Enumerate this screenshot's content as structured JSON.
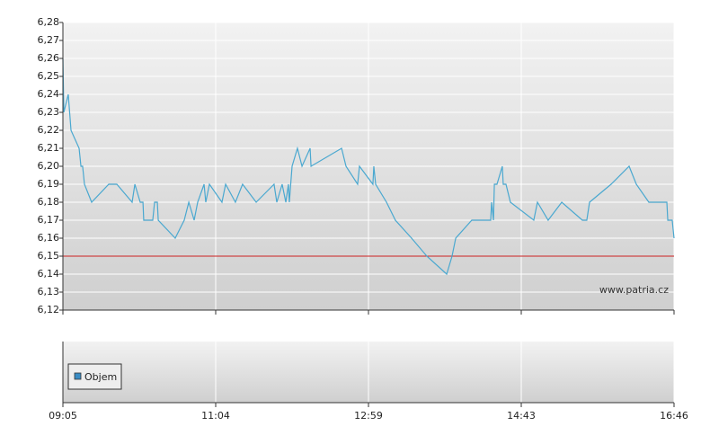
{
  "chart_data": [
    {
      "type": "line",
      "xlim": [
        0,
        4
      ],
      "xticks": [
        {
          "value": 0,
          "label": "09:05"
        },
        {
          "value": 1,
          "label": "11:04"
        },
        {
          "value": 2,
          "label": "12:59"
        },
        {
          "value": 3,
          "label": "14:43"
        },
        {
          "value": 4,
          "label": "16:46"
        }
      ],
      "ylim": [
        6.12,
        6.28
      ],
      "yticks": [
        {
          "value": 6.12,
          "label": "6,12"
        },
        {
          "value": 6.13,
          "label": "6,13"
        },
        {
          "value": 6.14,
          "label": "6,14"
        },
        {
          "value": 6.15,
          "label": "6,15"
        },
        {
          "value": 6.16,
          "label": "6,16"
        },
        {
          "value": 6.17,
          "label": "6,17"
        },
        {
          "value": 6.18,
          "label": "6,18"
        },
        {
          "value": 6.19,
          "label": "6,19"
        },
        {
          "value": 6.2,
          "label": "6,20"
        },
        {
          "value": 6.21,
          "label": "6,21"
        },
        {
          "value": 6.22,
          "label": "6,22"
        },
        {
          "value": 6.23,
          "label": "6,23"
        },
        {
          "value": 6.24,
          "label": "6,24"
        },
        {
          "value": 6.25,
          "label": "6,25"
        },
        {
          "value": 6.26,
          "label": "6,26"
        },
        {
          "value": 6.27,
          "label": "6,27"
        },
        {
          "value": 6.28,
          "label": "6,28"
        }
      ],
      "grid": true,
      "reference_line": {
        "value": 6.15,
        "color": "#cc2222"
      },
      "watermark": "www.patria.cz",
      "series": [
        {
          "color": "#4aa8d0",
          "x": [
            0,
            0.006,
            0.035,
            0.053,
            0.106,
            0.118,
            0.129,
            0.141,
            0.188,
            0.3,
            0.353,
            0.453,
            0.471,
            0.506,
            0.524,
            0.529,
            0.588,
            0.6,
            0.618,
            0.624,
            0.735,
            0.794,
            0.824,
            0.859,
            0.882,
            0.924,
            0.935,
            0.959,
            1.041,
            1.065,
            1.129,
            1.176,
            1.265,
            1.382,
            1.4,
            1.435,
            1.459,
            1.476,
            1.482,
            1.5,
            1.535,
            1.565,
            1.618,
            1.624,
            1.824,
            1.853,
            1.929,
            1.941,
            2.029,
            2.035,
            2.047,
            2.118,
            2.176,
            2.282,
            2.382,
            2.512,
            2.547,
            2.571,
            2.676,
            2.8,
            2.806,
            2.818,
            2.824,
            2.841,
            2.876,
            2.882,
            2.9,
            2.929,
            3.082,
            3.106,
            3.176,
            3.265,
            3.4,
            3.429,
            3.447,
            3.588,
            3.706,
            3.753,
            3.835,
            3.953,
            3.959,
            3.988,
            4
          ],
          "values": [
            6.26,
            6.23,
            6.24,
            6.22,
            6.21,
            6.2,
            6.2,
            6.19,
            6.18,
            6.19,
            6.19,
            6.18,
            6.19,
            6.18,
            6.18,
            6.17,
            6.17,
            6.18,
            6.18,
            6.17,
            6.16,
            6.17,
            6.18,
            6.17,
            6.18,
            6.19,
            6.18,
            6.19,
            6.18,
            6.19,
            6.18,
            6.19,
            6.18,
            6.19,
            6.18,
            6.19,
            6.18,
            6.19,
            6.18,
            6.2,
            6.21,
            6.2,
            6.21,
            6.2,
            6.21,
            6.2,
            6.19,
            6.2,
            6.19,
            6.2,
            6.19,
            6.18,
            6.17,
            6.16,
            6.15,
            6.14,
            6.15,
            6.16,
            6.17,
            6.17,
            6.18,
            6.17,
            6.19,
            6.19,
            6.2,
            6.19,
            6.19,
            6.18,
            6.17,
            6.18,
            6.17,
            6.18,
            6.17,
            6.17,
            6.18,
            6.19,
            6.2,
            6.19,
            6.18,
            6.18,
            6.17,
            6.17,
            6.16
          ]
        }
      ]
    },
    {
      "type": "bar",
      "series": [
        {
          "name": "Objem",
          "color": "#3a8cc4",
          "values": []
        }
      ]
    }
  ]
}
